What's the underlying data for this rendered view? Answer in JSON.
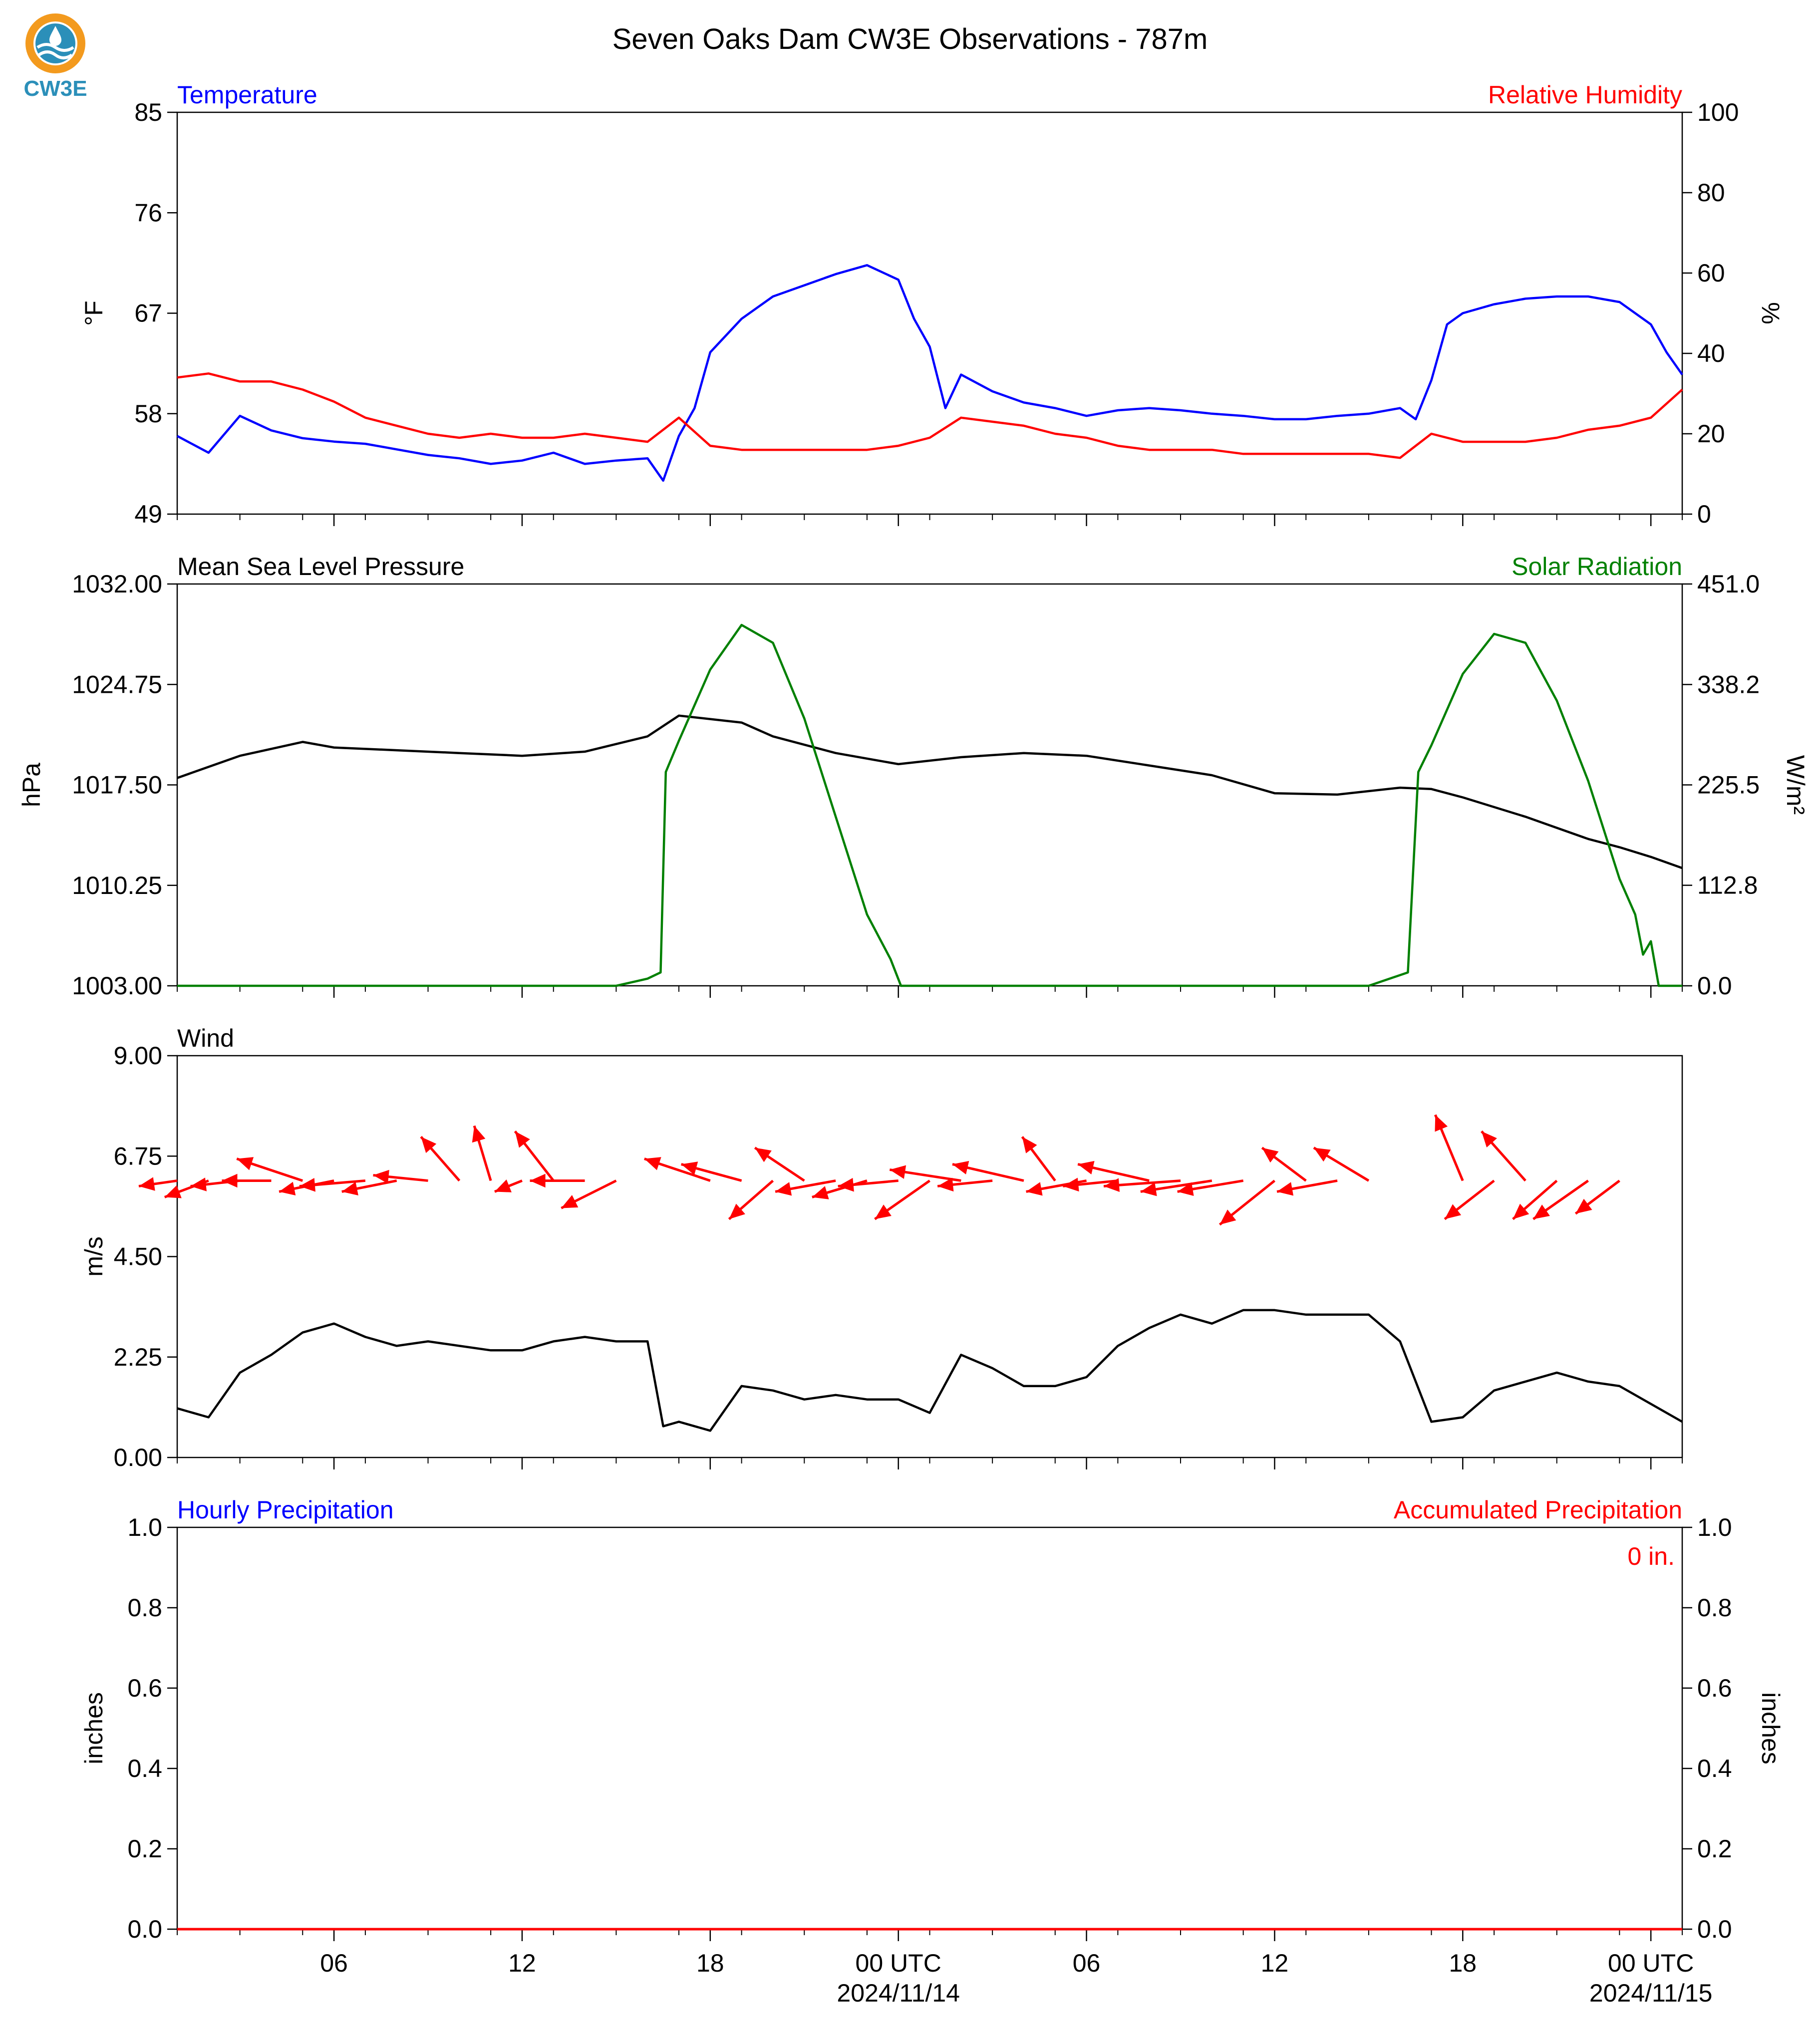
{
  "title": "Seven Oaks Dam CW3E Observations - 787m",
  "logo": {
    "text": "CW3E",
    "icon": "cw3e-droplet-logo",
    "colors": {
      "ring": "#f39a1e",
      "wave": "#2b8fb9",
      "text": "#2b8fb9"
    }
  },
  "colors": {
    "blue": "#0000ff",
    "red": "#ff0000",
    "green": "#008000",
    "black": "#000000"
  },
  "x_axis": {
    "start": "2024-11-13T01:00Z",
    "end": "2024-11-15T01:00Z",
    "tick_labels": [
      {
        "time": "2024-11-13T06:00Z",
        "label": "06"
      },
      {
        "time": "2024-11-13T12:00Z",
        "label": "12"
      },
      {
        "time": "2024-11-13T18:00Z",
        "label": "18"
      },
      {
        "time": "2024-11-14T00:00Z",
        "label": "00 UTC",
        "date": "2024/11/14"
      },
      {
        "time": "2024-11-14T06:00Z",
        "label": "06"
      },
      {
        "time": "2024-11-14T12:00Z",
        "label": "12"
      },
      {
        "time": "2024-11-14T18:00Z",
        "label": "18"
      },
      {
        "time": "2024-11-15T00:00Z",
        "label": "00 UTC",
        "date": "2024/11/15"
      }
    ]
  },
  "chart_data": [
    {
      "type": "line",
      "panel": "temperature-humidity",
      "left_title": "Temperature",
      "right_title": "Relative Humidity",
      "ylabel": "°F",
      "ylabel_right": "%",
      "ylim": [
        49,
        85
      ],
      "yticks": [
        "49",
        "58",
        "67",
        "76",
        "85"
      ],
      "ylim_right": [
        0,
        100
      ],
      "yticks_right": [
        "0",
        "20",
        "40",
        "60",
        "80",
        "100"
      ],
      "series": [
        {
          "name": "Temperature",
          "axis": "left",
          "color": "#0000ff",
          "x": [
            "2024-11-13T01:00Z",
            "2024-11-13T02:00Z",
            "2024-11-13T03:00Z",
            "2024-11-13T04:00Z",
            "2024-11-13T05:00Z",
            "2024-11-13T06:00Z",
            "2024-11-13T07:00Z",
            "2024-11-13T08:00Z",
            "2024-11-13T09:00Z",
            "2024-11-13T10:00Z",
            "2024-11-13T11:00Z",
            "2024-11-13T12:00Z",
            "2024-11-13T13:00Z",
            "2024-11-13T14:00Z",
            "2024-11-13T15:00Z",
            "2024-11-13T16:00Z",
            "2024-11-13T16:30Z",
            "2024-11-13T17:00Z",
            "2024-11-13T17:30Z",
            "2024-11-13T18:00Z",
            "2024-11-13T19:00Z",
            "2024-11-13T20:00Z",
            "2024-11-13T21:00Z",
            "2024-11-13T22:00Z",
            "2024-11-13T23:00Z",
            "2024-11-14T00:00Z",
            "2024-11-14T00:30Z",
            "2024-11-14T01:00Z",
            "2024-11-14T01:30Z",
            "2024-11-14T02:00Z",
            "2024-11-14T03:00Z",
            "2024-11-14T04:00Z",
            "2024-11-14T05:00Z",
            "2024-11-14T06:00Z",
            "2024-11-14T07:00Z",
            "2024-11-14T08:00Z",
            "2024-11-14T09:00Z",
            "2024-11-14T10:00Z",
            "2024-11-14T11:00Z",
            "2024-11-14T12:00Z",
            "2024-11-14T13:00Z",
            "2024-11-14T14:00Z",
            "2024-11-14T15:00Z",
            "2024-11-14T16:00Z",
            "2024-11-14T16:30Z",
            "2024-11-14T17:00Z",
            "2024-11-14T17:30Z",
            "2024-11-14T18:00Z",
            "2024-11-14T19:00Z",
            "2024-11-14T20:00Z",
            "2024-11-14T21:00Z",
            "2024-11-14T22:00Z",
            "2024-11-14T23:00Z",
            "2024-11-15T00:00Z",
            "2024-11-15T00:30Z",
            "2024-11-15T01:00Z"
          ],
          "values": [
            56.0,
            54.5,
            57.8,
            56.5,
            55.8,
            55.5,
            55.3,
            54.8,
            54.3,
            54.0,
            53.5,
            53.8,
            54.5,
            53.5,
            53.8,
            54.0,
            52.0,
            56.0,
            58.5,
            63.5,
            66.5,
            68.5,
            69.5,
            70.5,
            71.3,
            70.0,
            66.5,
            64.0,
            58.5,
            61.5,
            60.0,
            59.0,
            58.5,
            57.8,
            58.3,
            58.5,
            58.3,
            58.0,
            57.8,
            57.5,
            57.5,
            57.8,
            58.0,
            58.5,
            57.5,
            61.0,
            66.0,
            67.0,
            67.8,
            68.3,
            68.5,
            68.5,
            68.0,
            66.0,
            63.5,
            61.5
          ]
        },
        {
          "name": "Relative Humidity",
          "axis": "right",
          "color": "#ff0000",
          "x": [
            "2024-11-13T01:00Z",
            "2024-11-13T02:00Z",
            "2024-11-13T03:00Z",
            "2024-11-13T04:00Z",
            "2024-11-13T05:00Z",
            "2024-11-13T06:00Z",
            "2024-11-13T07:00Z",
            "2024-11-13T08:00Z",
            "2024-11-13T09:00Z",
            "2024-11-13T10:00Z",
            "2024-11-13T11:00Z",
            "2024-11-13T12:00Z",
            "2024-11-13T13:00Z",
            "2024-11-13T14:00Z",
            "2024-11-13T15:00Z",
            "2024-11-13T16:00Z",
            "2024-11-13T17:00Z",
            "2024-11-13T18:00Z",
            "2024-11-13T19:00Z",
            "2024-11-13T20:00Z",
            "2024-11-13T21:00Z",
            "2024-11-13T22:00Z",
            "2024-11-13T23:00Z",
            "2024-11-14T00:00Z",
            "2024-11-14T01:00Z",
            "2024-11-14T02:00Z",
            "2024-11-14T03:00Z",
            "2024-11-14T04:00Z",
            "2024-11-14T05:00Z",
            "2024-11-14T06:00Z",
            "2024-11-14T07:00Z",
            "2024-11-14T08:00Z",
            "2024-11-14T09:00Z",
            "2024-11-14T10:00Z",
            "2024-11-14T11:00Z",
            "2024-11-14T12:00Z",
            "2024-11-14T13:00Z",
            "2024-11-14T14:00Z",
            "2024-11-14T15:00Z",
            "2024-11-14T16:00Z",
            "2024-11-14T17:00Z",
            "2024-11-14T18:00Z",
            "2024-11-14T19:00Z",
            "2024-11-14T20:00Z",
            "2024-11-14T21:00Z",
            "2024-11-14T22:00Z",
            "2024-11-14T23:00Z",
            "2024-11-15T00:00Z",
            "2024-11-15T01:00Z"
          ],
          "values": [
            34,
            35,
            33,
            33,
            31,
            28,
            24,
            22,
            20,
            19,
            20,
            19,
            19,
            20,
            19,
            18,
            24,
            17,
            16,
            16,
            16,
            16,
            16,
            17,
            19,
            24,
            23,
            22,
            20,
            19,
            17,
            16,
            16,
            16,
            15,
            15,
            15,
            15,
            15,
            14,
            20,
            18,
            18,
            18,
            19,
            21,
            22,
            24,
            31
          ]
        }
      ]
    },
    {
      "type": "line",
      "panel": "pressure-solar",
      "left_title": "Mean Sea Level Pressure",
      "right_title": "Solar Radiation",
      "ylabel": "hPa",
      "ylabel_right": "W/m²",
      "ylim": [
        1003.0,
        1032.0
      ],
      "yticks": [
        "1003.00",
        "1010.25",
        "1017.50",
        "1024.75",
        "1032.00"
      ],
      "ylim_right": [
        0.0,
        451.0
      ],
      "yticks_right": [
        "0.0",
        "112.8",
        "225.5",
        "338.2",
        "451.0"
      ],
      "series": [
        {
          "name": "Mean Sea Level Pressure",
          "axis": "left",
          "color": "#000000",
          "x": [
            "2024-11-13T01:00Z",
            "2024-11-13T03:00Z",
            "2024-11-13T05:00Z",
            "2024-11-13T06:00Z",
            "2024-11-13T08:00Z",
            "2024-11-13T10:00Z",
            "2024-11-13T12:00Z",
            "2024-11-13T14:00Z",
            "2024-11-13T16:00Z",
            "2024-11-13T17:00Z",
            "2024-11-13T19:00Z",
            "2024-11-13T20:00Z",
            "2024-11-13T22:00Z",
            "2024-11-14T00:00Z",
            "2024-11-14T02:00Z",
            "2024-11-14T04:00Z",
            "2024-11-14T06:00Z",
            "2024-11-14T08:00Z",
            "2024-11-14T10:00Z",
            "2024-11-14T12:00Z",
            "2024-11-14T14:00Z",
            "2024-11-14T16:00Z",
            "2024-11-14T17:00Z",
            "2024-11-14T18:00Z",
            "2024-11-14T20:00Z",
            "2024-11-14T22:00Z",
            "2024-11-14T23:00Z",
            "2024-11-15T00:00Z",
            "2024-11-15T01:00Z"
          ],
          "values": [
            1018.0,
            1019.6,
            1020.6,
            1020.2,
            1020.0,
            1019.8,
            1019.6,
            1019.9,
            1021.0,
            1022.5,
            1022.0,
            1021.0,
            1019.8,
            1019.0,
            1019.5,
            1019.8,
            1019.6,
            1018.9,
            1018.2,
            1016.9,
            1016.8,
            1017.3,
            1017.2,
            1016.6,
            1015.2,
            1013.6,
            1013.0,
            1012.3,
            1011.5
          ]
        },
        {
          "name": "Solar Radiation",
          "axis": "right",
          "color": "#008000",
          "x": [
            "2024-11-13T01:00Z",
            "2024-11-13T15:00Z",
            "2024-11-13T16:00Z",
            "2024-11-13T16:25Z",
            "2024-11-13T16:35Z",
            "2024-11-13T17:00Z",
            "2024-11-13T18:00Z",
            "2024-11-13T19:00Z",
            "2024-11-13T20:00Z",
            "2024-11-13T21:00Z",
            "2024-11-13T22:00Z",
            "2024-11-13T23:00Z",
            "2024-11-13T23:45Z",
            "2024-11-14T00:05Z",
            "2024-11-14T15:00Z",
            "2024-11-14T16:15Z",
            "2024-11-14T16:35Z",
            "2024-11-14T17:00Z",
            "2024-11-14T18:00Z",
            "2024-11-14T19:00Z",
            "2024-11-14T20:00Z",
            "2024-11-14T21:00Z",
            "2024-11-14T22:00Z",
            "2024-11-14T23:00Z",
            "2024-11-14T23:30Z",
            "2024-11-14T23:45Z",
            "2024-11-15T00:00Z",
            "2024-11-15T00:15Z",
            "2024-11-15T01:00Z"
          ],
          "values": [
            0,
            0,
            8,
            15,
            240,
            275,
            355,
            405,
            385,
            300,
            190,
            80,
            30,
            0,
            0,
            15,
            240,
            270,
            350,
            395,
            385,
            320,
            230,
            120,
            80,
            35,
            50,
            0,
            0
          ]
        }
      ]
    },
    {
      "type": "line",
      "panel": "wind",
      "left_title": "Wind",
      "ylabel": "m/s",
      "ylim": [
        0.0,
        9.0
      ],
      "yticks": [
        "0.00",
        "2.25",
        "4.50",
        "6.75",
        "9.00"
      ],
      "series": [
        {
          "name": "Wind",
          "axis": "left",
          "color": "#000000",
          "x": [
            "2024-11-13T01:00Z",
            "2024-11-13T02:00Z",
            "2024-11-13T03:00Z",
            "2024-11-13T04:00Z",
            "2024-11-13T05:00Z",
            "2024-11-13T06:00Z",
            "2024-11-13T07:00Z",
            "2024-11-13T08:00Z",
            "2024-11-13T09:00Z",
            "2024-11-13T10:00Z",
            "2024-11-13T11:00Z",
            "2024-11-13T12:00Z",
            "2024-11-13T13:00Z",
            "2024-11-13T14:00Z",
            "2024-11-13T15:00Z",
            "2024-11-13T16:00Z",
            "2024-11-13T16:30Z",
            "2024-11-13T17:00Z",
            "2024-11-13T18:00Z",
            "2024-11-13T19:00Z",
            "2024-11-13T20:00Z",
            "2024-11-13T21:00Z",
            "2024-11-13T22:00Z",
            "2024-11-13T23:00Z",
            "2024-11-14T00:00Z",
            "2024-11-14T01:00Z",
            "2024-11-14T02:00Z",
            "2024-11-14T03:00Z",
            "2024-11-14T04:00Z",
            "2024-11-14T05:00Z",
            "2024-11-14T06:00Z",
            "2024-11-14T07:00Z",
            "2024-11-14T08:00Z",
            "2024-11-14T09:00Z",
            "2024-11-14T10:00Z",
            "2024-11-14T11:00Z",
            "2024-11-14T12:00Z",
            "2024-11-14T13:00Z",
            "2024-11-14T14:00Z",
            "2024-11-14T15:00Z",
            "2024-11-14T16:00Z",
            "2024-11-14T17:00Z",
            "2024-11-14T18:00Z",
            "2024-11-14T19:00Z",
            "2024-11-14T20:00Z",
            "2024-11-14T21:00Z",
            "2024-11-14T22:00Z",
            "2024-11-14T23:00Z",
            "2024-11-15T00:00Z",
            "2024-11-15T01:00Z"
          ],
          "values": [
            1.1,
            0.9,
            1.9,
            2.3,
            2.8,
            3.0,
            2.7,
            2.5,
            2.6,
            2.5,
            2.4,
            2.4,
            2.6,
            2.7,
            2.6,
            2.6,
            0.7,
            0.8,
            0.6,
            1.6,
            1.5,
            1.3,
            1.4,
            1.3,
            1.3,
            1.0,
            2.3,
            2.0,
            1.6,
            1.6,
            1.8,
            2.5,
            2.9,
            3.2,
            3.0,
            3.3,
            3.3,
            3.2,
            3.2,
            3.2,
            2.6,
            0.8,
            0.9,
            1.5,
            1.7,
            1.9,
            1.7,
            1.6,
            1.2,
            0.8
          ]
        }
      ],
      "wind_vectors": [
        {
          "time": "2024-11-13T01:00Z",
          "u": 0.7,
          "v": 0.1
        },
        {
          "time": "2024-11-13T02:00Z",
          "u": 0.8,
          "v": 0.3
        },
        {
          "time": "2024-11-13T03:00Z",
          "u": 0.9,
          "v": 0.1
        },
        {
          "time": "2024-11-13T04:00Z",
          "u": 0.9,
          "v": 0.0
        },
        {
          "time": "2024-11-13T05:00Z",
          "u": 1.2,
          "v": -0.4
        },
        {
          "time": "2024-11-13T06:00Z",
          "u": 1.0,
          "v": 0.2
        },
        {
          "time": "2024-11-13T07:00Z",
          "u": 1.2,
          "v": 0.1
        },
        {
          "time": "2024-11-13T08:00Z",
          "u": 1.0,
          "v": 0.2
        },
        {
          "time": "2024-11-13T09:00Z",
          "u": 1.0,
          "v": -0.1
        },
        {
          "time": "2024-11-13T10:00Z",
          "u": 0.7,
          "v": -0.8
        },
        {
          "time": "2024-11-13T11:00Z",
          "u": 0.3,
          "v": -1.0
        },
        {
          "time": "2024-11-13T12:00Z",
          "u": 0.5,
          "v": 0.2
        },
        {
          "time": "2024-11-13T13:00Z",
          "u": 0.7,
          "v": -0.9
        },
        {
          "time": "2024-11-13T14:00Z",
          "u": 1.0,
          "v": 0.0
        },
        {
          "time": "2024-11-13T15:00Z",
          "u": 1.0,
          "v": 0.5
        },
        {
          "time": "2024-11-13T18:00Z",
          "u": 1.2,
          "v": -0.4
        },
        {
          "time": "2024-11-13T19:00Z",
          "u": 1.1,
          "v": -0.3
        },
        {
          "time": "2024-11-13T20:00Z",
          "u": 0.8,
          "v": 0.7
        },
        {
          "time": "2024-11-13T21:00Z",
          "u": 0.9,
          "v": -0.6
        },
        {
          "time": "2024-11-13T22:00Z",
          "u": 1.1,
          "v": 0.2
        },
        {
          "time": "2024-11-13T23:00Z",
          "u": 1.0,
          "v": 0.3
        },
        {
          "time": "2024-11-14T00:00Z",
          "u": 1.1,
          "v": 0.1
        },
        {
          "time": "2024-11-14T01:00Z",
          "u": 1.0,
          "v": 0.7
        },
        {
          "time": "2024-11-14T02:00Z",
          "u": 1.3,
          "v": -0.2
        },
        {
          "time": "2024-11-14T03:00Z",
          "u": 1.0,
          "v": 0.1
        },
        {
          "time": "2024-11-14T04:00Z",
          "u": 1.3,
          "v": -0.3
        },
        {
          "time": "2024-11-14T05:00Z",
          "u": 0.6,
          "v": -0.8
        },
        {
          "time": "2024-11-14T06:00Z",
          "u": 1.1,
          "v": 0.2
        },
        {
          "time": "2024-11-14T07:00Z",
          "u": 1.0,
          "v": 0.1
        },
        {
          "time": "2024-11-14T08:00Z",
          "u": 1.3,
          "v": -0.3
        },
        {
          "time": "2024-11-14T09:00Z",
          "u": 1.4,
          "v": 0.1
        },
        {
          "time": "2024-11-14T10:00Z",
          "u": 1.3,
          "v": 0.2
        },
        {
          "time": "2024-11-14T11:00Z",
          "u": 1.2,
          "v": 0.2
        },
        {
          "time": "2024-11-14T12:00Z",
          "u": 1.0,
          "v": 0.8
        },
        {
          "time": "2024-11-14T13:00Z",
          "u": 0.8,
          "v": -0.6
        },
        {
          "time": "2024-11-14T14:00Z",
          "u": 1.1,
          "v": 0.2
        },
        {
          "time": "2024-11-14T15:00Z",
          "u": 1.0,
          "v": -0.6
        },
        {
          "time": "2024-11-14T18:00Z",
          "u": 0.5,
          "v": -1.2
        },
        {
          "time": "2024-11-14T19:00Z",
          "u": 0.9,
          "v": 0.7
        },
        {
          "time": "2024-11-14T20:00Z",
          "u": 0.8,
          "v": -0.9
        },
        {
          "time": "2024-11-14T21:00Z",
          "u": 0.8,
          "v": 0.7
        },
        {
          "time": "2024-11-14T22:00Z",
          "u": 1.0,
          "v": 0.7
        },
        {
          "time": "2024-11-14T23:00Z",
          "u": 0.8,
          "v": 0.6
        }
      ]
    },
    {
      "type": "line",
      "panel": "precipitation",
      "left_title": "Hourly Precipitation",
      "right_title": "Accumulated Precipitation",
      "ylabel": "inches",
      "ylabel_right": "inches",
      "ylim": [
        0.0,
        1.0
      ],
      "yticks": [
        "0.0",
        "0.2",
        "0.4",
        "0.6",
        "0.8",
        "1.0"
      ],
      "ylim_right": [
        0.0,
        1.0
      ],
      "yticks_right": [
        "0.0",
        "0.2",
        "0.4",
        "0.6",
        "0.8",
        "1.0"
      ],
      "annotation": "0 in.",
      "series": [
        {
          "name": "Accumulated Precipitation",
          "axis": "right",
          "color": "#ff0000",
          "x": [
            "2024-11-13T01:00Z",
            "2024-11-15T01:00Z"
          ],
          "values": [
            0,
            0
          ]
        }
      ]
    }
  ]
}
